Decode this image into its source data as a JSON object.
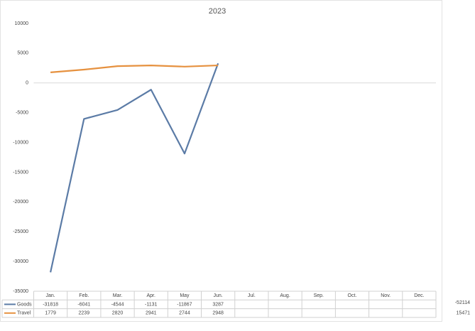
{
  "chart_data": {
    "type": "line",
    "title": "2023",
    "categories": [
      "Jan.",
      "Feb.",
      "Mar.",
      "Apr.",
      "May",
      "Jun.",
      "Jul.",
      "Aug.",
      "Sep.",
      "Oct.",
      "Nov.",
      "Dec."
    ],
    "series": [
      {
        "name": "Goods",
        "color": "#5b7ba6",
        "values": [
          -31818,
          -6041,
          -4544,
          -1131,
          -11867,
          3287,
          null,
          null,
          null,
          null,
          null,
          null
        ]
      },
      {
        "name": "Travel",
        "color": "#e6913f",
        "values": [
          1779,
          2239,
          2820,
          2941,
          2744,
          2948,
          null,
          null,
          null,
          null,
          null,
          null
        ]
      }
    ],
    "totals": [
      -52114,
      15471
    ],
    "ylim": [
      -35000,
      10000
    ],
    "yticks": [
      -35000,
      -30000,
      -25000,
      -20000,
      -15000,
      -10000,
      -5000,
      0,
      5000,
      10000
    ],
    "grid": false
  }
}
